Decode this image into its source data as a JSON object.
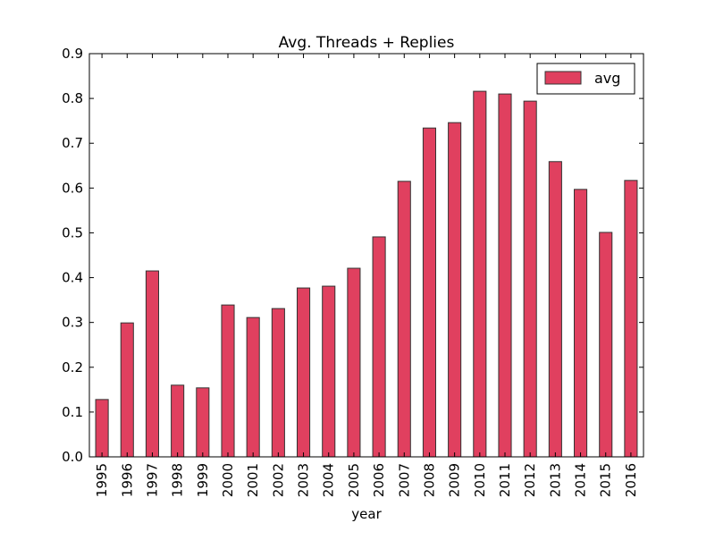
{
  "chart_data": {
    "type": "bar",
    "title": "Avg. Threads + Replies",
    "xlabel": "year",
    "ylabel": "",
    "ylim": [
      0,
      0.9
    ],
    "yticks": [
      "0.0",
      "0.1",
      "0.2",
      "0.3",
      "0.4",
      "0.5",
      "0.6",
      "0.7",
      "0.8",
      "0.9"
    ],
    "categories": [
      "1995",
      "1996",
      "1997",
      "1998",
      "1999",
      "2000",
      "2001",
      "2002",
      "2003",
      "2004",
      "2005",
      "2006",
      "2007",
      "2008",
      "2009",
      "2010",
      "2011",
      "2012",
      "2013",
      "2014",
      "2015",
      "2016"
    ],
    "series": [
      {
        "name": "avg",
        "color": "#E0405F",
        "values": [
          0.128,
          0.299,
          0.415,
          0.16,
          0.154,
          0.339,
          0.311,
          0.331,
          0.377,
          0.381,
          0.421,
          0.491,
          0.615,
          0.734,
          0.746,
          0.816,
          0.81,
          0.794,
          0.659,
          0.597,
          0.501,
          0.617
        ]
      }
    ],
    "legend": {
      "position": "top-right",
      "label": "avg"
    },
    "grid": false
  }
}
